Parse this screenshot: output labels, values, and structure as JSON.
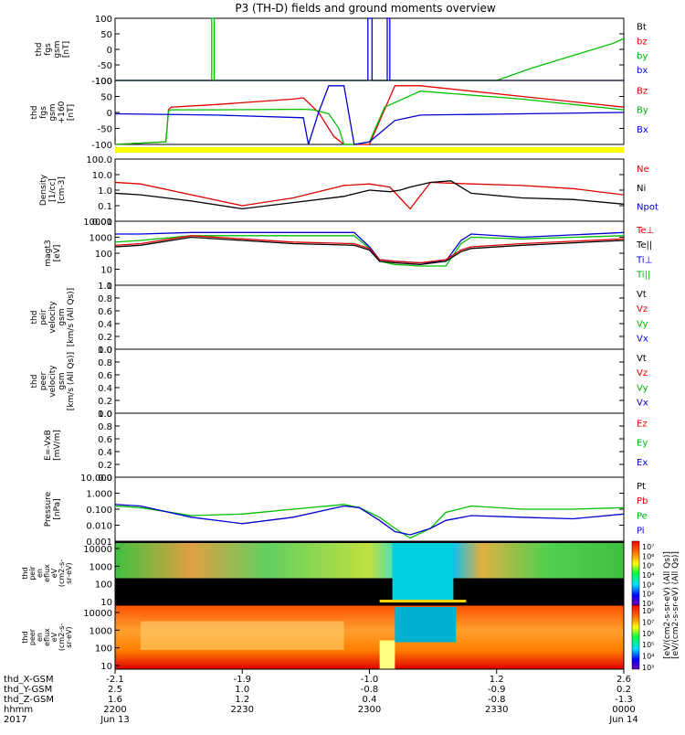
{
  "chart_data": {
    "type": "line",
    "title": "P3 (TH-D) fields and ground moments overview",
    "x_axis": {
      "labels": [
        "thd_X-GSM",
        "thd_Y-GSM",
        "thd_Z-GSM",
        "hhmm",
        "2017"
      ],
      "ticks": [
        {
          "X": "-2.1",
          "Y": "2.5",
          "Z": "1.6",
          "hhmm": "2200",
          "date": "Jun 13"
        },
        {
          "X": "-1.9",
          "Y": "1.0",
          "Z": "1.2",
          "hhmm": "2230",
          "date": ""
        },
        {
          "X": "-1.0",
          "Y": "-0.8",
          "Z": "0.4",
          "hhmm": "2300",
          "date": ""
        },
        {
          "X": "1.2",
          "Y": "-0.9",
          "Z": "-0.8",
          "hhmm": "2330",
          "date": ""
        },
        {
          "X": "2.6",
          "Y": "0.2",
          "Z": "-1.3",
          "hhmm": "0000",
          "date": "Jun 14"
        }
      ]
    },
    "panels": [
      {
        "id": "fgs_gsm",
        "ylabel": [
          "thd",
          "fgs",
          "gsm",
          "[nT]"
        ],
        "ticks": [
          "100",
          "50",
          "0",
          "-50",
          "-100"
        ],
        "ylim": [
          -100,
          100
        ],
        "legend": [
          {
            "t": "Bt",
            "c": "#000000"
          },
          {
            "t": "bz",
            "c": "#e00000"
          },
          {
            "t": "by",
            "c": "#00b000"
          },
          {
            "t": "bx",
            "c": "#0000d0"
          }
        ],
        "series": [
          {
            "name": "by",
            "color": "#00c000",
            "x": [
              0.0,
              0.19,
              0.19,
              0.195,
              0.195,
              0.75,
              0.82,
              0.9,
              0.98,
              1.0
            ],
            "y": [
              -100,
              -100,
              100,
              100,
              -100,
              -100,
              -60,
              -20,
              20,
              35
            ]
          },
          {
            "name": "bx",
            "color": "#0000d0",
            "x": [
              0.0,
              0.497,
              0.497,
              0.505,
              0.505,
              0.535,
              0.535,
              0.54,
              0.54,
              1.0
            ],
            "y": [
              -100,
              -100,
              100,
              100,
              -100,
              -100,
              100,
              100,
              -100,
              -100
            ]
          }
        ]
      },
      {
        "id": "fgs_gse",
        "ylabel": [
          "thd",
          "fgs",
          "gsm",
          "+160",
          "[nT]"
        ],
        "ticks": [
          "100",
          "50",
          "0",
          "-50",
          "-100"
        ],
        "ylim": [
          -120,
          120
        ],
        "legend": [
          {
            "t": "Bz",
            "c": "#e00000"
          },
          {
            "t": "By",
            "c": "#00b000"
          },
          {
            "t": "Bx",
            "c": "#0000d0"
          }
        ],
        "series": [
          {
            "name": "Bz",
            "color": "#e00000",
            "x": [
              0.0,
              0.1,
              0.105,
              0.11,
              0.2,
              0.35,
              0.37,
              0.4,
              0.43,
              0.45,
              0.47,
              0.5,
              0.55,
              0.6,
              0.8,
              1.0
            ],
            "y": [
              -120,
              -110,
              10,
              20,
              30,
              50,
              55,
              0,
              -90,
              -120,
              -120,
              -120,
              100,
              100,
              60,
              20
            ]
          },
          {
            "name": "By",
            "color": "#00c000",
            "x": [
              0.0,
              0.1,
              0.105,
              0.11,
              0.2,
              0.37,
              0.39,
              0.42,
              0.44,
              0.45,
              0.47,
              0.5,
              0.53,
              0.6,
              0.8,
              1.0
            ],
            "y": [
              -120,
              -110,
              5,
              10,
              10,
              12,
              10,
              -5,
              -60,
              -120,
              -120,
              -110,
              20,
              80,
              50,
              10
            ]
          },
          {
            "name": "Bx",
            "color": "#0000d0",
            "x": [
              0.0,
              0.2,
              0.37,
              0.38,
              0.4,
              0.41,
              0.42,
              0.45,
              0.47,
              0.5,
              0.55,
              0.6,
              0.8,
              1.0
            ],
            "y": [
              -5,
              -10,
              -20,
              -120,
              0,
              50,
              100,
              100,
              -120,
              -110,
              -30,
              -10,
              -5,
              0
            ]
          }
        ]
      },
      {
        "id": "density",
        "ylabel": [
          "Density",
          "[1/cc]",
          "[cm-3]"
        ],
        "ticks": [
          "100.0",
          "10.0",
          "1.0",
          "0.1",
          "0.01"
        ],
        "ylim": [
          -2,
          2
        ],
        "logscale": true,
        "legend": [
          {
            "t": "Ne",
            "c": "#e00000"
          },
          {
            "t": "Ni",
            "c": "#000000"
          },
          {
            "t": "Npot",
            "c": "#0000d0"
          }
        ],
        "series": [
          {
            "name": "Ne",
            "color": "#e00000",
            "x": [
              0.0,
              0.05,
              0.15,
              0.25,
              0.35,
              0.45,
              0.5,
              0.54,
              0.56,
              0.58,
              0.62,
              0.7,
              0.8,
              0.9,
              1.0
            ],
            "y": [
              0.5,
              0.4,
              -0.3,
              -1.0,
              -0.5,
              0.3,
              0.4,
              0.2,
              -0.5,
              -1.2,
              0.5,
              0.4,
              0.3,
              0.1,
              -0.3
            ]
          },
          {
            "name": "Ni",
            "color": "#000000",
            "x": [
              0.0,
              0.05,
              0.15,
              0.25,
              0.35,
              0.45,
              0.5,
              0.54,
              0.56,
              0.58,
              0.62,
              0.66,
              0.7,
              0.8,
              0.9,
              1.0
            ],
            "y": [
              -0.2,
              -0.3,
              -0.7,
              -1.2,
              -0.8,
              -0.4,
              0.0,
              -0.1,
              0.0,
              0.2,
              0.5,
              0.6,
              -0.2,
              -0.5,
              -0.6,
              -0.9
            ]
          }
        ]
      },
      {
        "id": "temp",
        "ylabel": [
          "magt3",
          "[eV]"
        ],
        "ticks": [
          "10000",
          "1000",
          "100",
          "10",
          "1"
        ],
        "ylim": [
          0,
          4
        ],
        "logscale": true,
        "legend": [
          {
            "t": "Te⊥",
            "c": "#e00000"
          },
          {
            "t": "Te||",
            "c": "#000000"
          },
          {
            "t": "Ti⊥",
            "c": "#0000d0"
          },
          {
            "t": "Ti||",
            "c": "#00b000"
          }
        ],
        "series": [
          {
            "name": "Ti||",
            "color": "#00c000",
            "x": [
              0.0,
              0.05,
              0.15,
              0.25,
              0.35,
              0.47,
              0.5,
              0.52,
              0.55,
              0.6,
              0.65,
              0.68,
              0.7,
              0.8,
              1.0
            ],
            "y": [
              2.7,
              2.8,
              3.1,
              3.1,
              3.1,
              3.1,
              2.3,
              1.5,
              1.3,
              1.2,
              1.2,
              2.6,
              3.0,
              2.9,
              3.1
            ]
          },
          {
            "name": "Ti⊥",
            "color": "#0000d0",
            "x": [
              0.0,
              0.05,
              0.15,
              0.25,
              0.35,
              0.47,
              0.5,
              0.52,
              0.55,
              0.6,
              0.65,
              0.68,
              0.7,
              0.8,
              1.0
            ],
            "y": [
              3.2,
              3.2,
              3.3,
              3.3,
              3.3,
              3.3,
              2.4,
              1.6,
              1.5,
              1.4,
              1.5,
              2.8,
              3.2,
              3.0,
              3.3
            ]
          },
          {
            "name": "Te⊥",
            "color": "#e00000",
            "x": [
              0.0,
              0.05,
              0.15,
              0.25,
              0.35,
              0.47,
              0.5,
              0.52,
              0.55,
              0.6,
              0.65,
              0.68,
              0.7,
              0.8,
              1.0
            ],
            "y": [
              2.5,
              2.6,
              3.1,
              2.9,
              2.7,
              2.6,
              2.3,
              1.6,
              1.5,
              1.4,
              1.6,
              2.2,
              2.4,
              2.6,
              2.9
            ]
          },
          {
            "name": "Te||",
            "color": "#000000",
            "x": [
              0.0,
              0.05,
              0.15,
              0.25,
              0.35,
              0.47,
              0.5,
              0.52,
              0.55,
              0.6,
              0.65,
              0.68,
              0.7,
              0.8,
              1.0
            ],
            "y": [
              2.4,
              2.5,
              3.0,
              2.8,
              2.6,
              2.5,
              2.2,
              1.5,
              1.4,
              1.3,
              1.5,
              2.1,
              2.3,
              2.5,
              2.8
            ]
          }
        ]
      },
      {
        "id": "peir_vel",
        "ylabel": [
          "thd",
          "peir",
          "velocity",
          "gsm",
          "[km/s (All Qs)]"
        ],
        "ticks": [
          "1.0",
          "0.8",
          "0.6",
          "0.4",
          "0.2",
          "0.0"
        ],
        "ylim": [
          0,
          1
        ],
        "legend": [
          {
            "t": "Vt",
            "c": "#000000"
          },
          {
            "t": "Vz",
            "c": "#e00000"
          },
          {
            "t": "Vy",
            "c": "#00b000"
          },
          {
            "t": "Vx",
            "c": "#0000d0"
          }
        ],
        "series": []
      },
      {
        "id": "peer_vel",
        "ylabel": [
          "thd",
          "peer",
          "velocity",
          "gsm",
          "[km/s (All Qs)]"
        ],
        "ticks": [
          "1.0",
          "0.8",
          "0.6",
          "0.4",
          "0.2",
          "0.0"
        ],
        "ylim": [
          0,
          1
        ],
        "legend": [
          {
            "t": "Vt",
            "c": "#000000"
          },
          {
            "t": "Vz",
            "c": "#e00000"
          },
          {
            "t": "Vy",
            "c": "#00b000"
          },
          {
            "t": "Vx",
            "c": "#0000d0"
          }
        ],
        "series": []
      },
      {
        "id": "efield",
        "ylabel": [
          "E=-VxB",
          "[mV/m]"
        ],
        "ticks": [
          "1.0",
          "0.8",
          "0.6",
          "0.4",
          "0.2",
          "0.0"
        ],
        "ylim": [
          0,
          1
        ],
        "legend": [
          {
            "t": "Ez",
            "c": "#e00000"
          },
          {
            "t": "Ey",
            "c": "#00b000"
          },
          {
            "t": "Ex",
            "c": "#0000d0"
          }
        ],
        "series": []
      },
      {
        "id": "pressure",
        "ylabel": [
          "Pressure",
          "[nPa]"
        ],
        "ticks": [
          "10.000",
          "1.000",
          "0.100",
          "0.010",
          "0.001"
        ],
        "ylim": [
          -3,
          1
        ],
        "logscale": true,
        "legend": [
          {
            "t": "Pt",
            "c": "#000000"
          },
          {
            "t": "Pb",
            "c": "#e00000"
          },
          {
            "t": "Pe",
            "c": "#00b000"
          },
          {
            "t": "Pi",
            "c": "#0000d0"
          }
        ],
        "series": [
          {
            "name": "Pe",
            "color": "#00c000",
            "x": [
              0.0,
              0.05,
              0.15,
              0.25,
              0.35,
              0.45,
              0.48,
              0.52,
              0.55,
              0.58,
              0.62,
              0.65,
              0.7,
              0.8,
              0.9,
              1.0
            ],
            "y": [
              -0.8,
              -0.9,
              -1.4,
              -1.3,
              -1.0,
              -0.7,
              -0.9,
              -1.5,
              -2.2,
              -2.8,
              -2.2,
              -1.2,
              -0.8,
              -1.0,
              -1.0,
              -0.9
            ]
          },
          {
            "name": "Pi",
            "color": "#0000d0",
            "x": [
              0.0,
              0.05,
              0.15,
              0.25,
              0.35,
              0.45,
              0.48,
              0.52,
              0.55,
              0.58,
              0.62,
              0.65,
              0.7,
              0.8,
              0.9,
              1.0
            ],
            "y": [
              -0.7,
              -0.8,
              -1.5,
              -1.9,
              -1.5,
              -0.8,
              -0.9,
              -1.7,
              -2.4,
              -2.6,
              -2.2,
              -1.7,
              -1.4,
              -1.5,
              -1.6,
              -1.3
            ]
          }
        ]
      }
    ],
    "spectrograms": [
      {
        "id": "peir_flux",
        "ylabel": [
          "thd",
          "peir",
          "en",
          "eflux",
          "eV",
          "(cm2-s-",
          "sr-eV)"
        ],
        "ticks": [
          "10000",
          "1000",
          "100",
          "10"
        ],
        "colorbar_label": "[eV/(cm2-s-sr-eV) (All Qs)]",
        "colorbar_ticks": [
          "10⁷",
          "10⁶",
          "10⁵",
          "10⁴",
          "10³",
          "10²",
          "10¹"
        ]
      },
      {
        "id": "peer_flux",
        "ylabel": [
          "thd",
          "peer",
          "en",
          "eflux",
          "eV",
          "(cm2-s-",
          "sr-eV)"
        ],
        "ticks": [
          "10000",
          "1000",
          "100",
          "10"
        ],
        "colorbar_label": "[eV/(cm2-s-sr-eV) (All Qs)]",
        "colorbar_ticks": [
          "10⁸",
          "10⁷",
          "10⁶",
          "10⁵",
          "10⁴",
          "10³"
        ]
      }
    ]
  }
}
